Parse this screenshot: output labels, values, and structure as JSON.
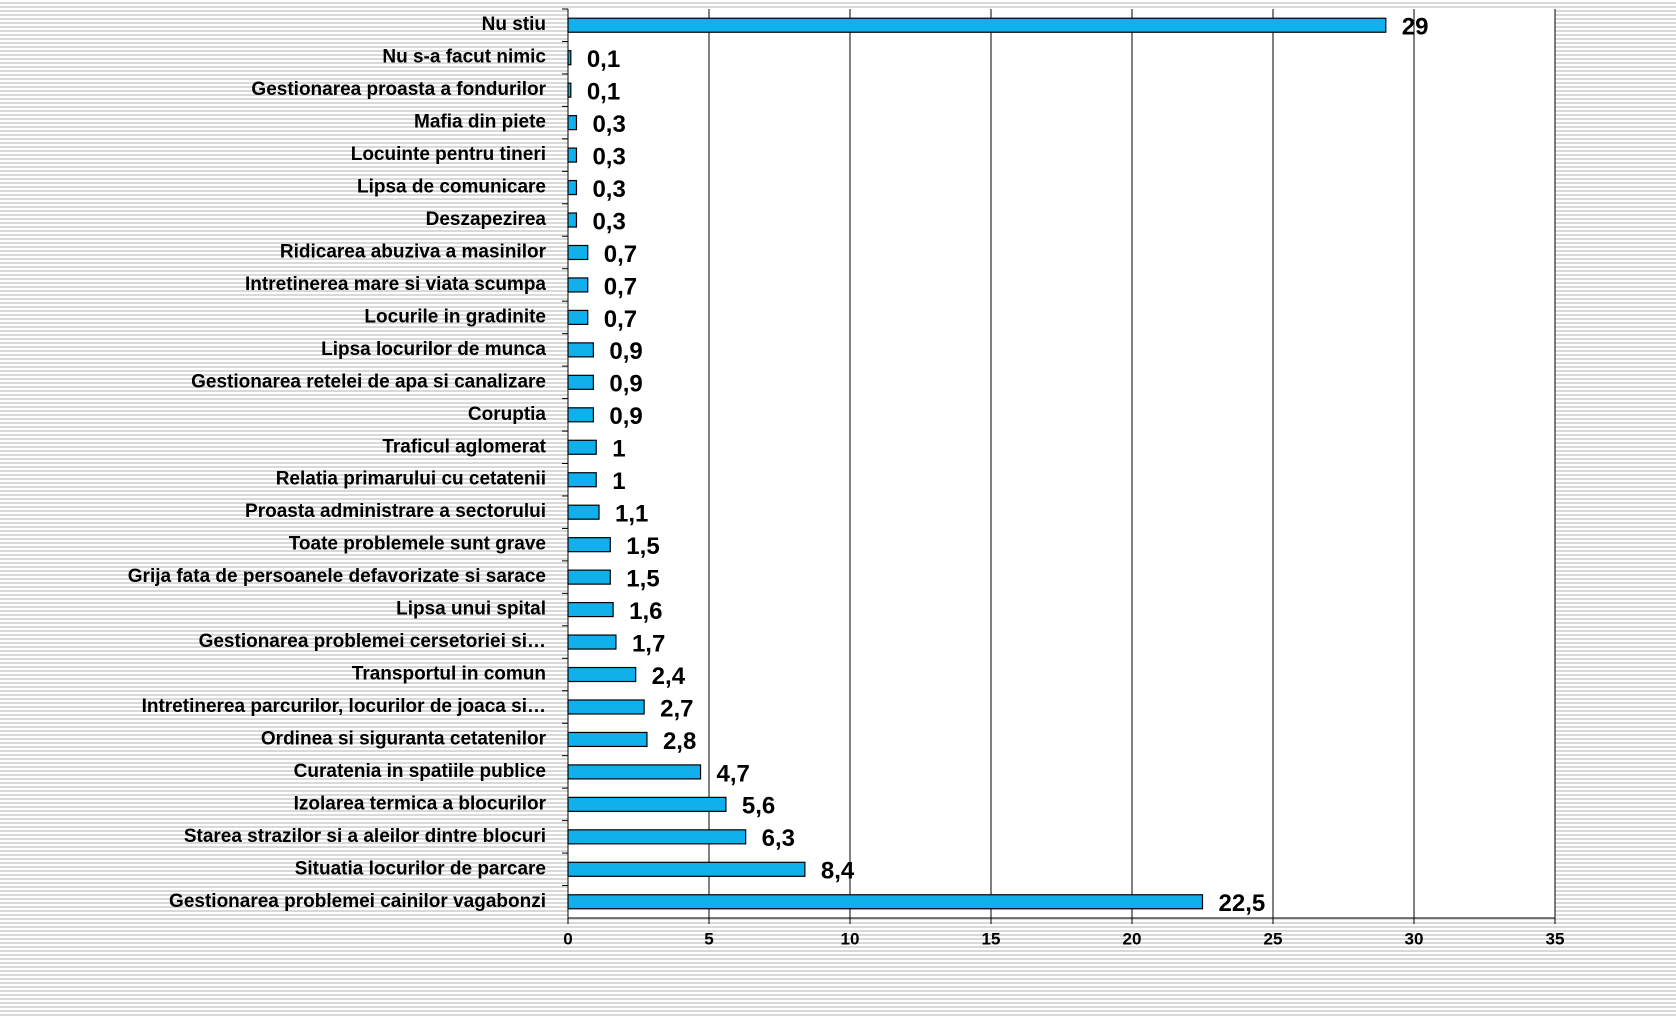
{
  "chart_data": {
    "type": "bar",
    "orientation": "horizontal",
    "categories": [
      "Nu stiu",
      "Nu s-a facut nimic",
      "Gestionarea proasta a fondurilor",
      "Mafia din piete",
      "Locuinte pentru tineri",
      "Lipsa de comunicare",
      "Deszapezirea",
      "Ridicarea abuziva a masinilor",
      "Intretinerea mare si viata scumpa",
      "Locurile in gradinite",
      "Lipsa locurilor de munca",
      "Gestionarea retelei de apa si canalizare",
      "Coruptia",
      "Traficul aglomerat",
      "Relatia primarului cu cetatenii",
      "Proasta administrare a sectorului",
      "Toate problemele sunt grave",
      "Grija fata de persoanele defavorizate si sarace",
      "Lipsa unui spital",
      "Gestionarea problemei cersetoriei si…",
      "Transportul in comun",
      "Intretinerea parcurilor, locurilor de joaca si…",
      "Ordinea si siguranta cetatenilor",
      "Curatenia in spatiile publice",
      "Izolarea termica a blocurilor",
      "Starea strazilor si a aleilor dintre blocuri",
      "Situatia locurilor de parcare",
      "Gestionarea problemei cainilor vagabonzi"
    ],
    "values": [
      29,
      0.1,
      0.1,
      0.3,
      0.3,
      0.3,
      0.3,
      0.7,
      0.7,
      0.7,
      0.9,
      0.9,
      0.9,
      1,
      1,
      1.1,
      1.5,
      1.5,
      1.6,
      1.7,
      2.4,
      2.7,
      2.8,
      4.7,
      5.6,
      6.3,
      8.4,
      22.5
    ],
    "value_labels": [
      "29",
      "0,1",
      "0,1",
      "0,3",
      "0,3",
      "0,3",
      "0,3",
      "0,7",
      "0,7",
      "0,7",
      "0,9",
      "0,9",
      "0,9",
      "1",
      "1",
      "1,1",
      "1,5",
      "1,5",
      "1,6",
      "1,7",
      "2,4",
      "2,7",
      "2,8",
      "4,7",
      "5,6",
      "6,3",
      "8,4",
      "22,5"
    ],
    "color": "#0fb0ec",
    "xlim": [
      0,
      35
    ],
    "xticks": [
      0,
      5,
      10,
      15,
      20,
      25,
      30,
      35
    ],
    "grid": true
  }
}
